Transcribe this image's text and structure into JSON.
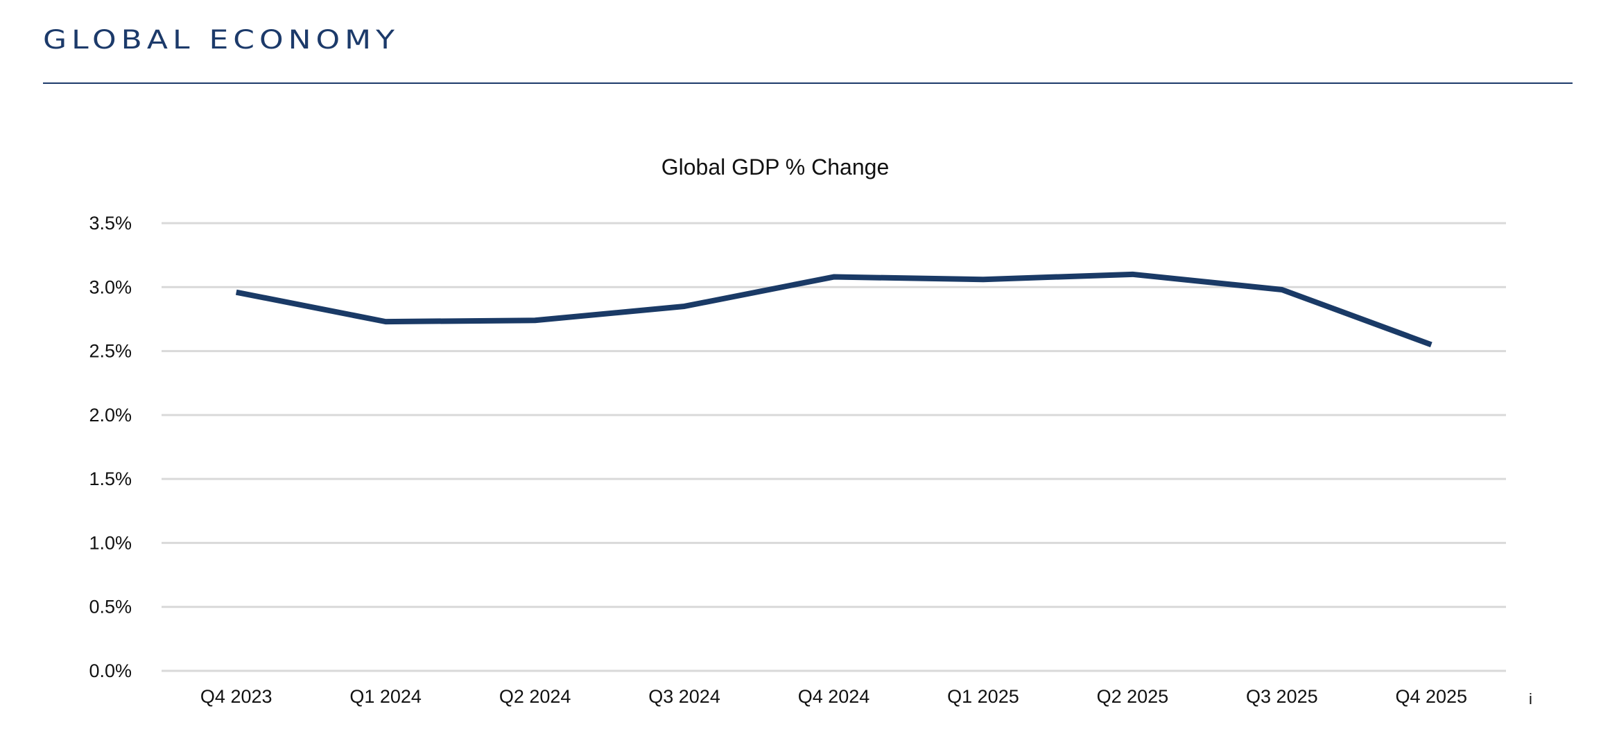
{
  "header": {
    "title": "GLOBAL ECONOMY"
  },
  "chart_data": {
    "type": "line",
    "title": "Global GDP % Change",
    "xlabel": "",
    "ylabel": "",
    "categories": [
      "Q4 2023",
      "Q1 2024",
      "Q2 2024",
      "Q3 2024",
      "Q4 2024",
      "Q1 2025",
      "Q2 2025",
      "Q3 2025",
      "Q4 2025"
    ],
    "series": [
      {
        "values": [
          2.96,
          2.73,
          2.74,
          2.85,
          3.08,
          3.06,
          3.1,
          2.98,
          2.55
        ],
        "color": "#1a3a66"
      }
    ],
    "ylim": [
      0,
      3.5
    ],
    "yticks": [
      "0.0%",
      "0.5%",
      "1.0%",
      "1.5%",
      "2.0%",
      "2.5%",
      "3.0%",
      "3.5%"
    ],
    "grid": true,
    "legend": "none",
    "stray_mark": "i"
  },
  "colors": {
    "brand": "#1c3a6a",
    "line": "#1a3a66",
    "grid": "#d9d9d9"
  }
}
